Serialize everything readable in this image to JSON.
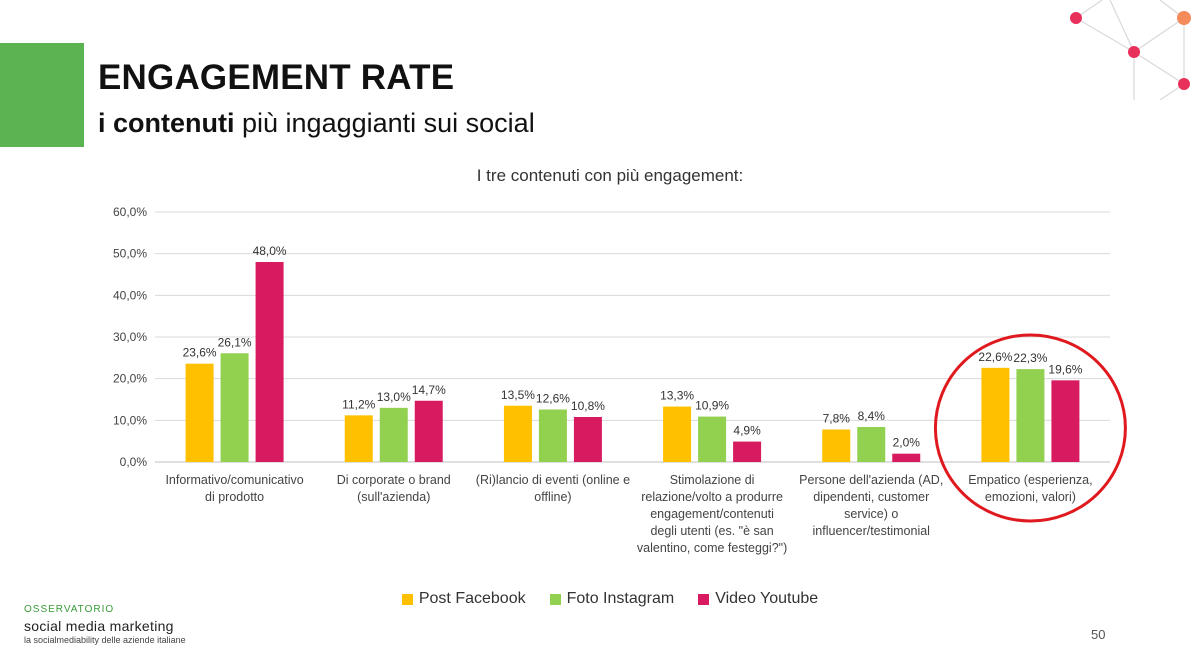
{
  "header": {
    "title": "ENGAGEMENT RATE",
    "subtitle_bold": "i contenuti",
    "subtitle_rest": " più ingaggianti sui social"
  },
  "chart_data": {
    "type": "bar",
    "title": "I tre contenuti con più engagement:",
    "categories": [
      [
        "Informativo/comunicativo",
        "di prodotto"
      ],
      [
        "Di corporate o brand",
        "(sull'azienda)"
      ],
      [
        "(Ri)lancio di eventi (online e",
        "offline)"
      ],
      [
        "Stimolazione di",
        "relazione/volto a produrre",
        "engagement/contenuti",
        "degli utenti (es. \"è san",
        "valentino, come festeggi?\")"
      ],
      [
        "Persone dell'azienda (AD,",
        "dipendenti, customer",
        "service) o",
        "influencer/testimonial"
      ],
      [
        "Empatico (esperienza,",
        "emozioni, valori)"
      ]
    ],
    "series": [
      {
        "name": "Post Facebook",
        "color": "#ffc000",
        "values": [
          23.6,
          11.2,
          13.5,
          13.3,
          7.8,
          22.6
        ],
        "labels": [
          "23,6%",
          "11,2%",
          "13,5%",
          "13,3%",
          "7,8%",
          "22,6%"
        ]
      },
      {
        "name": "Foto Instagram",
        "color": "#92d050",
        "values": [
          26.1,
          13.0,
          12.6,
          10.9,
          8.4,
          22.3
        ],
        "labels": [
          "26,1%",
          "13,0%",
          "12,6%",
          "10,9%",
          "8,4%",
          "22,3%"
        ]
      },
      {
        "name": "Video Youtube",
        "color": "#d81b60",
        "values": [
          48.0,
          14.7,
          10.8,
          4.9,
          2.0,
          19.6
        ],
        "labels": [
          "48,0%",
          "14,7%",
          "10,8%",
          "4,9%",
          "2,0%",
          "19,6%"
        ]
      }
    ],
    "ylim": [
      0,
      60
    ],
    "yticks": [
      "0,0%",
      "10,0%",
      "20,0%",
      "30,0%",
      "40,0%",
      "50,0%",
      "60,0%"
    ],
    "grid": true,
    "legend_position": "bottom",
    "highlighted_category": "Empatico (esperienza, emozioni, valori)",
    "highlight_color": "#e0191e"
  },
  "footer": {
    "brand_top": "OSSERVATORIO",
    "brand_main": "social media marketing",
    "brand_sub": "la socialmediability delle aziende italiane",
    "page_number": "50"
  },
  "colors": {
    "accent_green": "#5cb352",
    "deco_red": "#e8315a",
    "deco_orange": "#f58a5a"
  }
}
